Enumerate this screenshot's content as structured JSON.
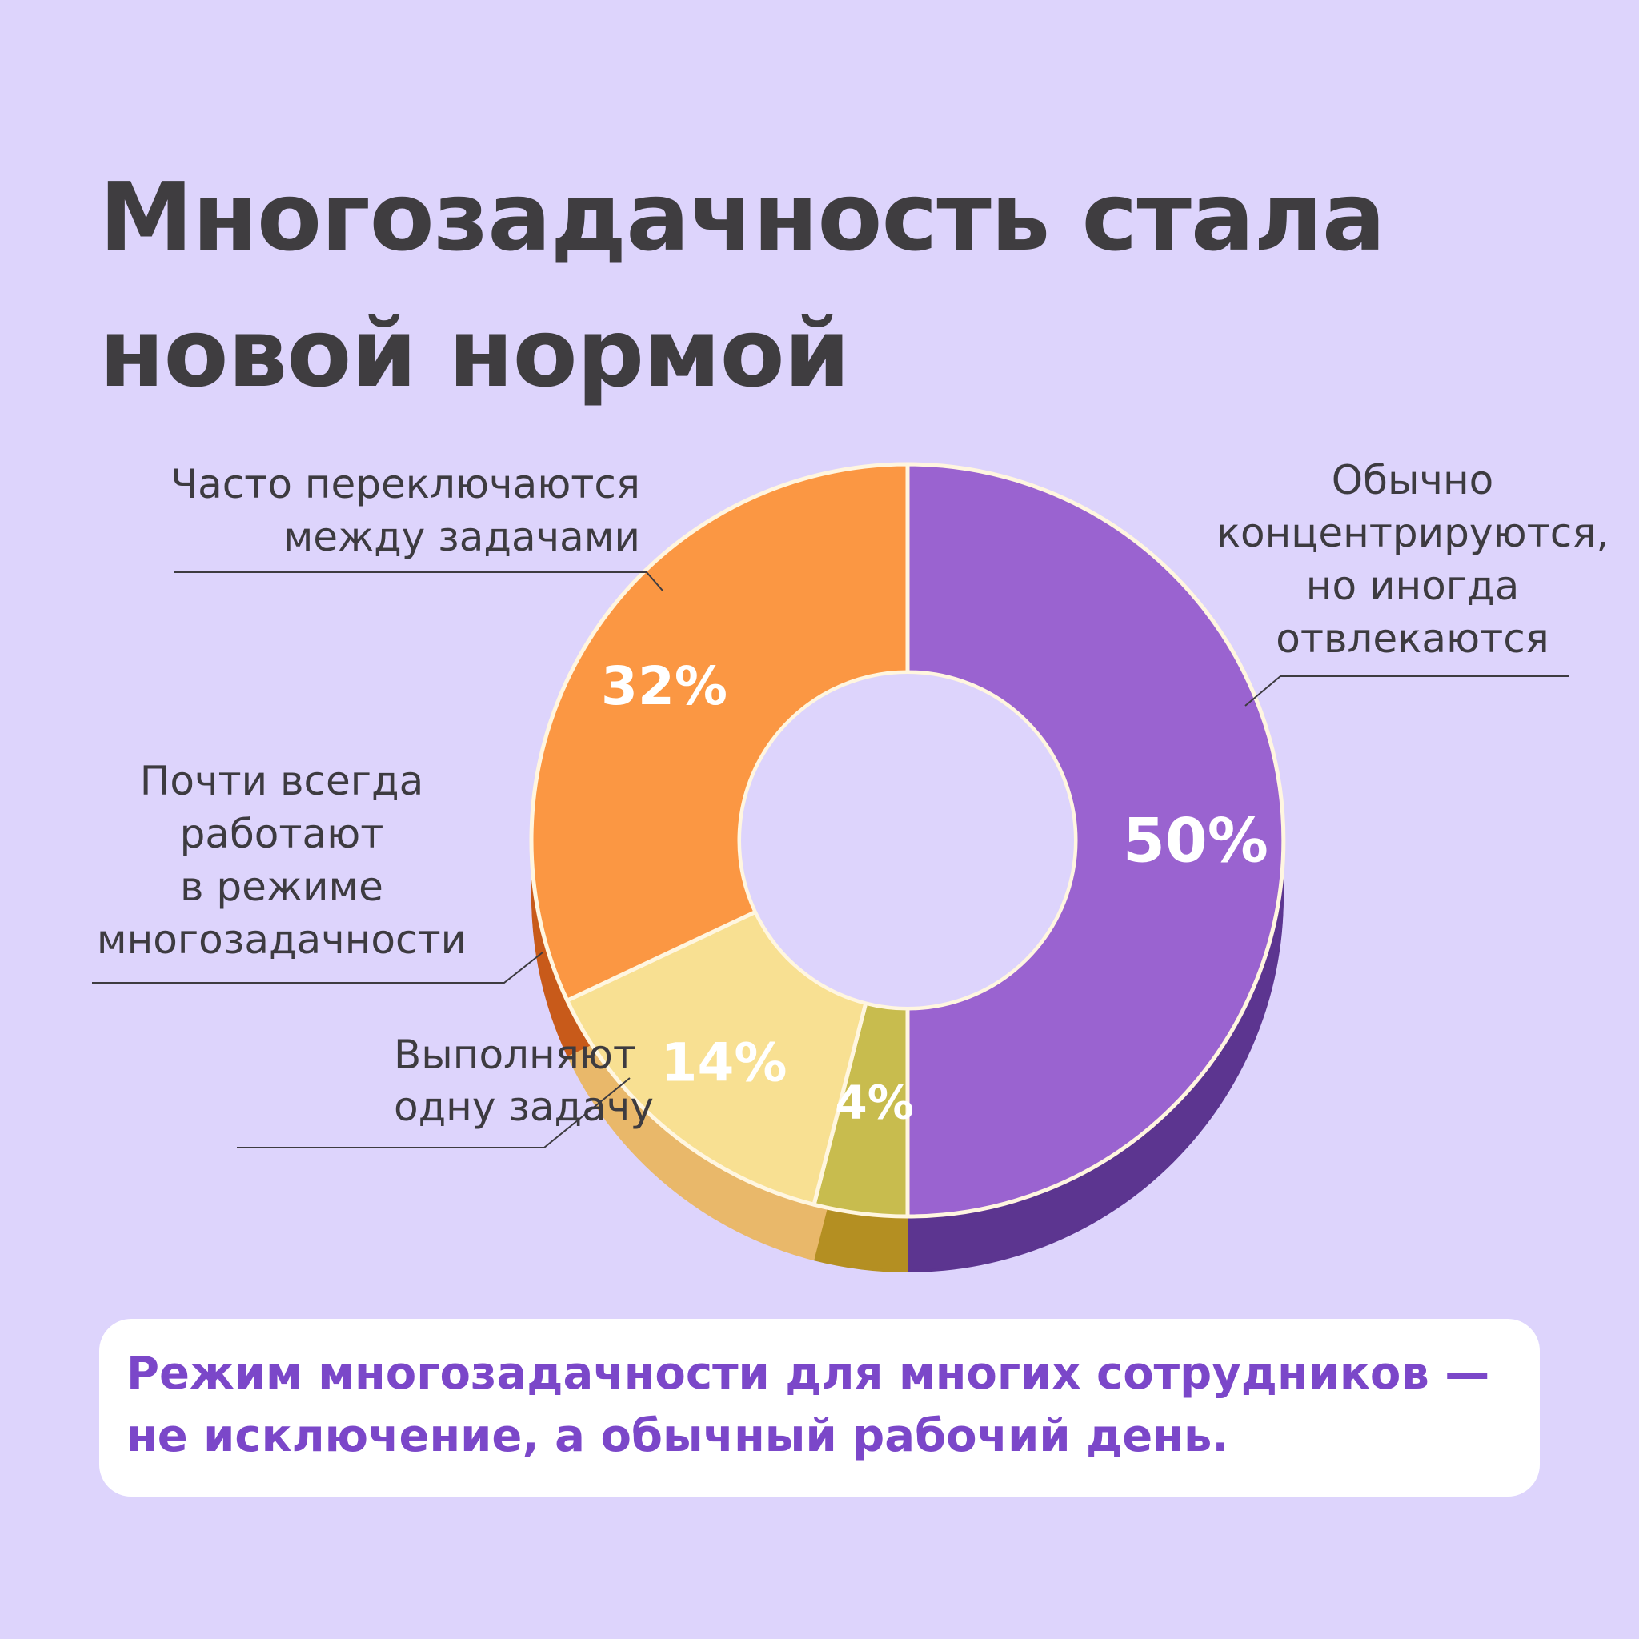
{
  "title_lines": [
    "Многозадачность стала",
    "новой нормой"
  ],
  "colors": {
    "background": "#ddd4fc",
    "title": "#3f3d40",
    "note_text": "#7b47c9"
  },
  "chart_data": {
    "type": "pie",
    "title": "Многозадачность стала новой нормой",
    "slices": [
      {
        "label": "Обычно концентрируются, но иногда отвлекаются",
        "label_lines": [
          "Обычно",
          "концентрируются,",
          "но иногда",
          "отвлекаются"
        ],
        "value": 50,
        "value_label": "50%",
        "color": "#9a63d0",
        "side_color": "#5c3590"
      },
      {
        "label": "Выполняют одну задачу",
        "label_lines": [
          "Выполняют",
          "одну задачу"
        ],
        "value": 4,
        "value_label": "4%",
        "color": "#c8bc4e",
        "side_color": "#b48f22"
      },
      {
        "label": "Почти всегда работают в режиме многозадачности",
        "label_lines": [
          "Почти всегда",
          "работают",
          "в режиме",
          "многозадачности"
        ],
        "value": 14,
        "value_label": "14%",
        "color": "#f8e092",
        "side_color": "#e9b86a"
      },
      {
        "label": "Часто переключаются между задачами",
        "label_lines": [
          "Часто переключаются",
          "между задачами"
        ],
        "value": 32,
        "value_label": "32%",
        "color": "#fb9743",
        "side_color": "#c85a1a"
      }
    ]
  },
  "note": {
    "lines": [
      "Режим многозадачности для многих сотрудников —",
      "не исключение, а обычный рабочий день."
    ]
  }
}
